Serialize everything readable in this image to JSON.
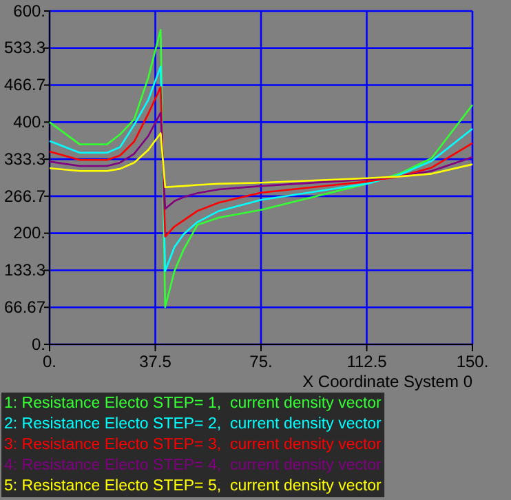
{
  "chart_data": {
    "type": "line",
    "xlabel": "X Coordinate System 0",
    "xlim": [
      0,
      150
    ],
    "ylim": [
      0,
      600
    ],
    "xticks": [
      {
        "value": 0,
        "label": "0."
      },
      {
        "value": 37.5,
        "label": "37.5"
      },
      {
        "value": 75,
        "label": "75."
      },
      {
        "value": 112.5,
        "label": "112.5"
      },
      {
        "value": 150,
        "label": "150."
      }
    ],
    "yticks": [
      {
        "value": 0,
        "label": "0."
      },
      {
        "value": 66.67,
        "label": "66.67"
      },
      {
        "value": 133.3,
        "label": "133.3"
      },
      {
        "value": 200,
        "label": "200."
      },
      {
        "value": 266.7,
        "label": "266.7"
      },
      {
        "value": 333.3,
        "label": "333.3"
      },
      {
        "value": 400,
        "label": "400."
      },
      {
        "value": 466.7,
        "label": "466.7"
      },
      {
        "value": 533.3,
        "label": "533.3"
      },
      {
        "value": 600,
        "label": "600."
      }
    ],
    "x": [
      0,
      10.7,
      20.4,
      25,
      30,
      35,
      39.4,
      41,
      44.3,
      47.5,
      52.4,
      60,
      75,
      112.5,
      124,
      135.5,
      150
    ],
    "grid": true,
    "legend": "bottom",
    "line_style": "solid",
    "marker": "none",
    "series": [
      {
        "name": "1: Resistance Electo STEP= 1,  current density vector",
        "color": "#33ff33",
        "values": [
          400,
          360,
          360,
          378,
          405,
          480,
          566,
          67,
          132,
          170,
          215,
          228,
          242,
          289,
          307,
          335,
          431
        ]
      },
      {
        "name": "2: Resistance Electo STEP= 2,  current density vector",
        "color": "#00ffff",
        "values": [
          366,
          345,
          345,
          355,
          395,
          440,
          500,
          132,
          175,
          198,
          220,
          240,
          260,
          289,
          305,
          330,
          388
        ]
      },
      {
        "name": "3: Resistance Electo STEP= 3,  current density vector",
        "color": "#ff0000",
        "values": [
          347,
          332,
          332,
          340,
          365,
          415,
          463,
          194,
          212,
          223,
          240,
          255,
          273,
          293,
          302,
          318,
          362
        ]
      },
      {
        "name": "4: Resistance Electo STEP= 4,  current density vector",
        "color": "#800080",
        "values": [
          329,
          321,
          321,
          327,
          343,
          375,
          417,
          244,
          258,
          265,
          272,
          279,
          285,
          297,
          302,
          312,
          337
        ]
      },
      {
        "name": "5: Resistance Electo STEP= 5,  current density vector",
        "color": "#ffff00",
        "values": [
          317,
          312,
          312,
          316,
          327,
          350,
          380,
          283,
          284,
          285,
          287,
          289,
          291,
          299,
          302,
          307,
          324
        ]
      }
    ]
  }
}
